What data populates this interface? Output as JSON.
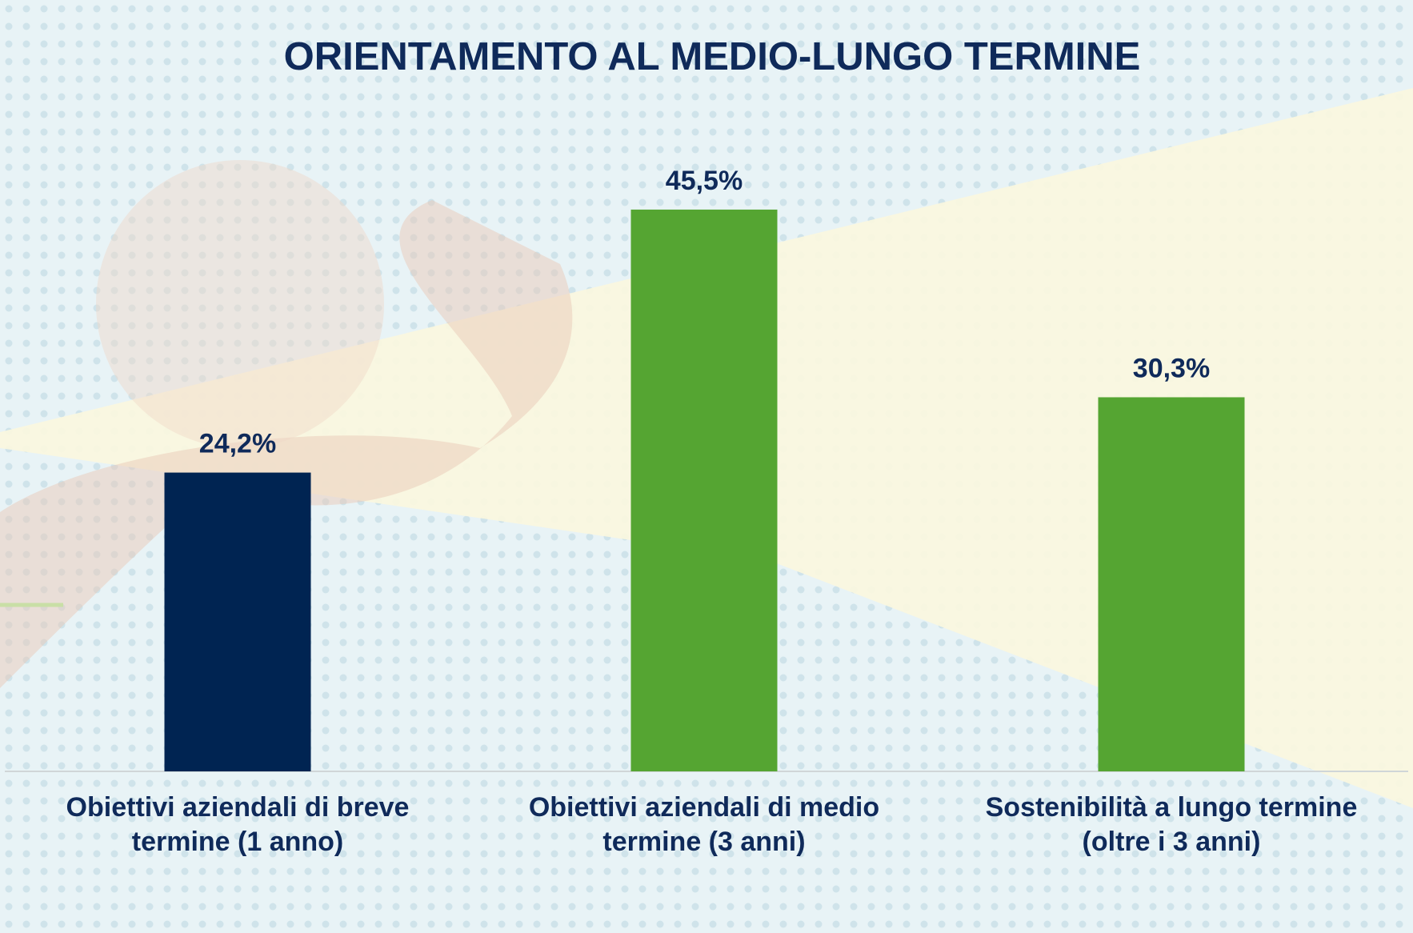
{
  "chart_data": {
    "type": "bar",
    "title": "ORIENTAMENTO AL MEDIO-LUNGO TERMINE",
    "categories": [
      "Obiettivi aziendali di breve termine (1 anno)",
      "Obiettivi aziendali di medio termine (3 anni)",
      "Sostenibilità a lungo termine (oltre i 3 anni)"
    ],
    "values": [
      24.2,
      45.5,
      30.3
    ],
    "value_labels": [
      "24,2%",
      "45,5%",
      "30,3%"
    ],
    "colors": [
      "#002452",
      "#55a532",
      "#55a532"
    ]
  }
}
